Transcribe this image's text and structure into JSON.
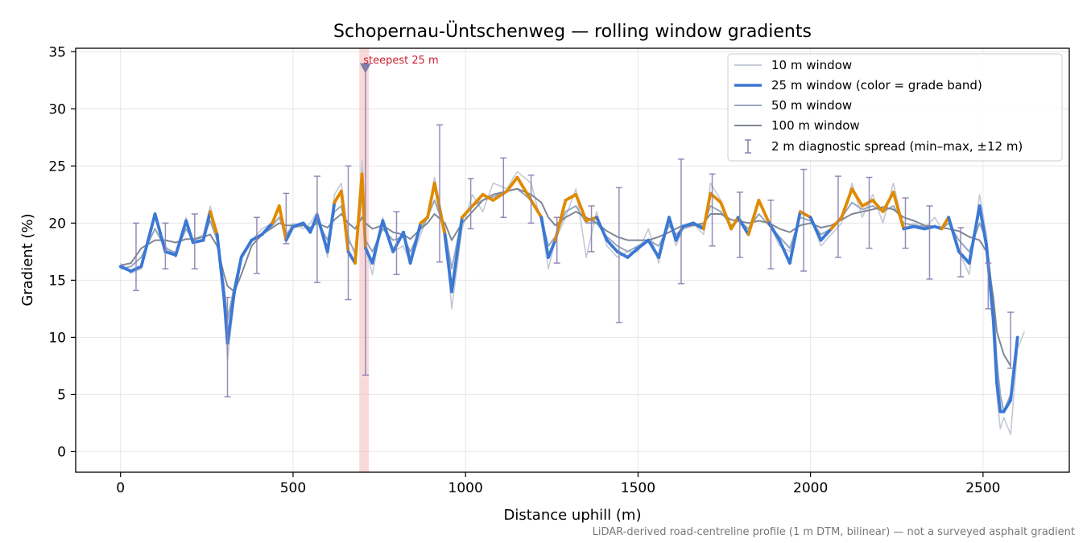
{
  "chart_data": {
    "type": "line",
    "title": "Schopernau-Üntschenweg — rolling window gradients",
    "xlabel": "Distance uphill (m)",
    "ylabel": "Gradient (%)",
    "xlim": [
      -130,
      2750
    ],
    "ylim": [
      -1.8,
      35.3
    ],
    "x_ticks": [
      0,
      500,
      1000,
      1500,
      2000,
      2500
    ],
    "y_ticks": [
      0,
      5,
      10,
      15,
      20,
      25,
      30,
      35
    ],
    "grid": true,
    "legend_position": "top-right",
    "footnote": "LiDAR-derived road-centreline profile (1 m DTM, bilinear) — not a surveyed asphalt gradient",
    "colors": {
      "w10": "#c3c9d6",
      "w25_low": "#3a78d4",
      "w25_high": "#e08a00",
      "w50": "#98a6bd",
      "w100": "#7f8796",
      "errorbar": "#8a80b0",
      "highlight": "#f4b6b6",
      "annotation": "#cc2233"
    },
    "grade_band_threshold": 20,
    "profile_x": [
      0,
      30,
      60,
      100,
      130,
      160,
      190,
      210,
      240,
      260,
      280,
      300,
      310,
      330,
      350,
      380,
      410,
      440,
      460,
      480,
      500,
      530,
      550,
      570,
      600,
      620,
      640,
      660,
      680,
      700,
      710,
      730,
      760,
      790,
      820,
      840,
      870,
      890,
      910,
      940,
      960,
      990,
      1020,
      1050,
      1080,
      1120,
      1150,
      1190,
      1220,
      1240,
      1260,
      1290,
      1320,
      1350,
      1380,
      1410,
      1440,
      1470,
      1500,
      1530,
      1560,
      1590,
      1610,
      1630,
      1660,
      1690,
      1710,
      1740,
      1770,
      1790,
      1820,
      1850,
      1880,
      1910,
      1940,
      1970,
      2000,
      2030,
      2060,
      2090,
      2120,
      2150,
      2180,
      2210,
      2240,
      2270,
      2300,
      2330,
      2360,
      2380,
      2400,
      2430,
      2460,
      2490,
      2510,
      2530,
      2540,
      2550,
      2560,
      2580,
      2600,
      2620
    ],
    "series": [
      {
        "name": "10 m window",
        "values": [
          16.5,
          15.6,
          16.0,
          20.6,
          18.0,
          17.0,
          20.5,
          18.5,
          19.0,
          21.5,
          19.0,
          14.0,
          8.0,
          13.5,
          17.0,
          18.5,
          19.5,
          20.0,
          21.5,
          19.0,
          20.0,
          19.5,
          20.0,
          21.0,
          17.0,
          22.5,
          23.5,
          19.0,
          17.0,
          25.5,
          18.0,
          15.5,
          20.5,
          17.5,
          18.0,
          16.5,
          19.0,
          20.5,
          24.0,
          19.5,
          12.5,
          19.5,
          22.5,
          21.0,
          23.5,
          23.0,
          24.5,
          23.5,
          20.0,
          16.0,
          18.5,
          20.5,
          23.0,
          17.0,
          21.0,
          18.0,
          17.0,
          17.5,
          17.5,
          19.5,
          16.5,
          20.5,
          18.0,
          19.5,
          20.0,
          19.0,
          23.5,
          22.0,
          19.5,
          20.5,
          19.5,
          22.0,
          20.0,
          18.0,
          17.5,
          21.0,
          20.5,
          18.0,
          19.0,
          20.0,
          23.5,
          20.5,
          22.5,
          20.0,
          23.5,
          19.5,
          20.0,
          19.5,
          20.5,
          19.5,
          20.5,
          17.5,
          15.5,
          22.5,
          19.0,
          12.0,
          5.0,
          2.0,
          3.0,
          1.5,
          9.0,
          10.5,
          9.5
        ]
      },
      {
        "name": "25 m window (color = grade band)",
        "values": [
          16.2,
          15.8,
          16.2,
          20.8,
          17.5,
          17.2,
          20.2,
          18.3,
          18.5,
          21.0,
          19.0,
          13.5,
          9.5,
          14.0,
          17.0,
          18.5,
          19.0,
          20.0,
          21.5,
          18.5,
          19.7,
          20.0,
          19.2,
          20.7,
          17.5,
          21.8,
          22.8,
          17.5,
          16.5,
          24.3,
          17.8,
          16.5,
          20.2,
          17.5,
          19.2,
          16.5,
          20.0,
          20.5,
          23.5,
          19.0,
          14.0,
          20.5,
          21.5,
          22.5,
          22.0,
          22.8,
          24.0,
          22.0,
          20.5,
          17.0,
          18.5,
          22.0,
          22.5,
          20.2,
          20.5,
          18.5,
          17.5,
          17.0,
          17.8,
          18.5,
          17.0,
          20.5,
          18.5,
          19.7,
          20.0,
          19.5,
          22.6,
          21.8,
          19.5,
          20.5,
          19.0,
          22.0,
          20.0,
          18.5,
          16.5,
          21.0,
          20.5,
          18.5,
          19.5,
          20.5,
          23.0,
          21.5,
          22.0,
          21.0,
          22.7,
          19.5,
          19.7,
          19.5,
          19.7,
          19.5,
          20.5,
          17.5,
          16.5,
          21.5,
          18.0,
          11.5,
          6.0,
          3.5,
          3.5,
          4.5,
          10.0,
          11.0,
          10.5
        ]
      },
      {
        "name": "50 m window",
        "values": [
          16.0,
          16.2,
          17.0,
          19.5,
          17.8,
          17.4,
          19.5,
          18.5,
          18.8,
          20.2,
          18.5,
          14.5,
          11.5,
          14.5,
          17.2,
          18.5,
          19.0,
          19.8,
          20.5,
          19.0,
          19.6,
          19.8,
          19.5,
          20.2,
          18.5,
          21.0,
          21.5,
          18.5,
          17.5,
          22.5,
          18.5,
          17.5,
          19.5,
          18.5,
          18.8,
          17.5,
          19.5,
          20.5,
          22.0,
          19.5,
          16.0,
          20.5,
          21.5,
          22.0,
          22.3,
          22.8,
          23.0,
          22.0,
          20.5,
          18.0,
          18.8,
          21.0,
          21.5,
          20.0,
          20.0,
          18.8,
          18.0,
          17.5,
          18.0,
          18.5,
          18.0,
          19.8,
          19.0,
          19.5,
          19.8,
          19.8,
          21.5,
          21.0,
          19.8,
          20.2,
          19.5,
          20.8,
          19.8,
          18.8,
          17.8,
          20.5,
          20.2,
          19.0,
          19.5,
          20.5,
          21.8,
          21.2,
          21.5,
          21.0,
          21.5,
          20.0,
          19.8,
          19.7,
          19.7,
          19.5,
          20.0,
          18.5,
          17.5,
          20.0,
          18.5,
          13.0,
          8.0,
          5.0,
          3.5,
          5.0,
          8.5,
          10.0,
          10.5
        ]
      },
      {
        "name": "100 m window",
        "values": [
          16.3,
          16.5,
          17.8,
          18.5,
          18.5,
          18.3,
          18.6,
          18.6,
          18.8,
          19.0,
          18.0,
          15.5,
          14.5,
          14.0,
          15.5,
          18.0,
          19.0,
          19.6,
          20.0,
          19.8,
          19.8,
          19.8,
          19.6,
          20.0,
          19.6,
          20.3,
          20.8,
          20.0,
          19.5,
          20.5,
          20.0,
          19.5,
          19.8,
          19.2,
          19.0,
          18.6,
          19.5,
          20.0,
          20.8,
          20.0,
          18.5,
          20.0,
          21.0,
          22.0,
          22.5,
          22.8,
          23.0,
          22.5,
          21.8,
          20.5,
          19.8,
          20.5,
          21.0,
          20.5,
          20.0,
          19.3,
          18.8,
          18.5,
          18.5,
          18.5,
          18.8,
          19.2,
          19.5,
          19.8,
          19.8,
          20.0,
          20.8,
          20.8,
          20.3,
          20.2,
          20.0,
          20.2,
          20.0,
          19.5,
          19.2,
          19.8,
          20.0,
          19.6,
          19.8,
          20.3,
          20.8,
          21.0,
          21.2,
          21.4,
          21.2,
          20.5,
          20.2,
          19.8,
          19.7,
          19.6,
          19.5,
          19.3,
          18.8,
          18.5,
          17.5,
          13.5,
          10.5,
          9.5,
          8.5,
          7.5,
          7.5,
          7.5,
          7.5
        ]
      }
    ],
    "series_x_max": [
      2620,
      2610,
      2580,
      2580
    ],
    "error_bars": {
      "name": "2 m diagnostic spread (min–max, ±12 m)",
      "points": [
        {
          "x": 45,
          "y": 17.0,
          "low": 14.1,
          "high": 20.0
        },
        {
          "x": 130,
          "y": 18.0,
          "low": 16.0,
          "high": 20.0
        },
        {
          "x": 215,
          "y": 18.5,
          "low": 16.0,
          "high": 20.8
        },
        {
          "x": 310,
          "y": 9.5,
          "low": 4.8,
          "high": 13.5
        },
        {
          "x": 395,
          "y": 18.5,
          "low": 15.6,
          "high": 20.5
        },
        {
          "x": 480,
          "y": 20.0,
          "low": 18.2,
          "high": 22.6
        },
        {
          "x": 570,
          "y": 19.5,
          "low": 14.8,
          "high": 24.1
        },
        {
          "x": 660,
          "y": 20.0,
          "low": 13.3,
          "high": 25.0
        },
        {
          "x": 710,
          "y": 20.0,
          "low": 6.7,
          "high": 33.6
        },
        {
          "x": 800,
          "y": 18.5,
          "low": 15.5,
          "high": 21.0
        },
        {
          "x": 925,
          "y": 21.5,
          "low": 16.6,
          "high": 28.6
        },
        {
          "x": 1015,
          "y": 21.5,
          "low": 19.5,
          "high": 23.9
        },
        {
          "x": 1110,
          "y": 21.7,
          "low": 20.5,
          "high": 25.7
        },
        {
          "x": 1190,
          "y": 22.0,
          "low": 20.0,
          "high": 24.2
        },
        {
          "x": 1265,
          "y": 18.5,
          "low": 16.5,
          "high": 20.5
        },
        {
          "x": 1365,
          "y": 19.5,
          "low": 17.5,
          "high": 21.5
        },
        {
          "x": 1445,
          "y": 17.0,
          "low": 11.3,
          "high": 23.1
        },
        {
          "x": 1625,
          "y": 20.0,
          "low": 14.7,
          "high": 25.6
        },
        {
          "x": 1715,
          "y": 21.0,
          "low": 18.0,
          "high": 24.3
        },
        {
          "x": 1795,
          "y": 20.0,
          "low": 17.0,
          "high": 22.7
        },
        {
          "x": 1885,
          "y": 18.0,
          "low": 16.0,
          "high": 22.0
        },
        {
          "x": 1980,
          "y": 18.5,
          "low": 15.8,
          "high": 24.7
        },
        {
          "x": 2080,
          "y": 21.0,
          "low": 17.0,
          "high": 24.1
        },
        {
          "x": 2170,
          "y": 21.0,
          "low": 17.8,
          "high": 24.0
        },
        {
          "x": 2275,
          "y": 20.0,
          "low": 17.8,
          "high": 22.2
        },
        {
          "x": 2345,
          "y": 18.5,
          "low": 15.1,
          "high": 21.5
        },
        {
          "x": 2435,
          "y": 17.5,
          "low": 15.3,
          "high": 19.6
        },
        {
          "x": 2515,
          "y": 14.5,
          "low": 12.5,
          "high": 16.5
        },
        {
          "x": 2580,
          "y": 9.5,
          "low": 7.3,
          "high": 12.2
        }
      ]
    },
    "highlight": {
      "x_start": 692,
      "x_end": 720,
      "label": "steepest 25 m",
      "marker_x": 710,
      "marker_y": 33.6
    }
  }
}
